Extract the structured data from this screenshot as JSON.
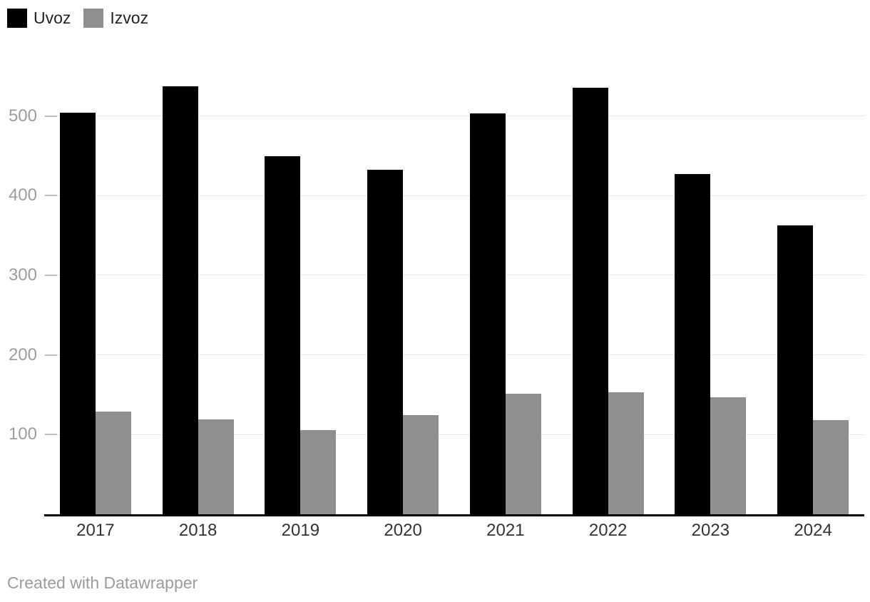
{
  "legend": {
    "items": [
      {
        "label": "Uvoz",
        "color": "#000000"
      },
      {
        "label": "Izvoz",
        "color": "#8f8f8f"
      }
    ]
  },
  "footer": {
    "credit": "Created with Datawrapper"
  },
  "chart_data": {
    "type": "bar",
    "title": "",
    "xlabel": "",
    "ylabel": "",
    "categories": [
      "2017",
      "2018",
      "2019",
      "2020",
      "2021",
      "2022",
      "2023",
      "2024"
    ],
    "series": [
      {
        "name": "Uvoz",
        "color": "#000000",
        "values": [
          504,
          537,
          449,
          432,
          503,
          535,
          427,
          363
        ]
      },
      {
        "name": "Izvoz",
        "color": "#8f8f8f",
        "values": [
          129,
          119,
          106,
          124,
          151,
          153,
          147,
          118
        ]
      }
    ],
    "yticks": [
      100,
      200,
      300,
      400,
      500
    ],
    "ylim": [
      0,
      560
    ],
    "grid": "horizontal",
    "legend_position": "top-left",
    "axis_color": "#000000",
    "grid_color": "#e8e8e8",
    "tick_color": "#bdbdbd",
    "y_label_color": "#9d9d9d",
    "x_label_color": "#333333"
  }
}
